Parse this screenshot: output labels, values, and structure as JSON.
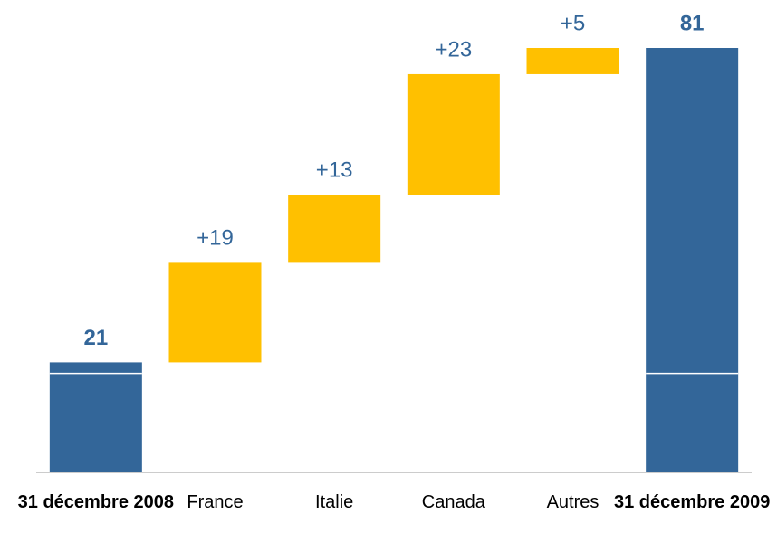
{
  "chart_data": {
    "type": "waterfall",
    "categories": [
      "31 décembre 2008",
      "France",
      "Italie",
      "Canada",
      "Autres",
      "31 décembre 2009"
    ],
    "values": [
      21,
      19,
      13,
      23,
      5,
      81
    ],
    "value_labels": [
      "21",
      "+19",
      "+13",
      "+23",
      "+5",
      "81"
    ],
    "measure": [
      "absolute",
      "relative",
      "relative",
      "relative",
      "relative",
      "total"
    ],
    "colors": {
      "absolute": "#336699",
      "relative": "#FFC000",
      "total": "#336699"
    },
    "label_color": "#336699"
  }
}
